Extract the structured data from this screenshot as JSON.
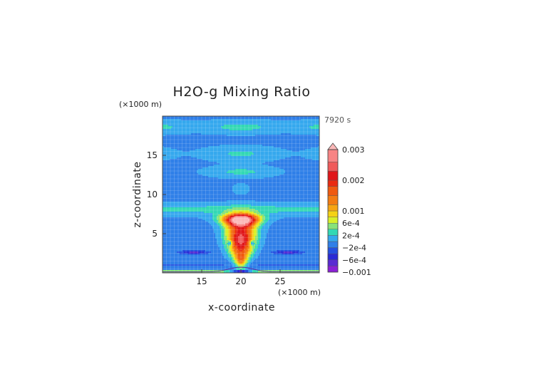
{
  "chart_data": {
    "type": "heatmap",
    "title": "H2O-g Mixing Ratio",
    "xlabel": "x-coordinate",
    "ylabel": "z-coordinate",
    "x_unit": "(×1000 m)",
    "z_unit": "(×1000 m)",
    "time_label": "7920 s",
    "xlim": [
      10,
      30
    ],
    "ylim": [
      0,
      20
    ],
    "x_ticks": [
      "15",
      "20",
      "25"
    ],
    "x_tick_values": [
      15,
      20,
      25
    ],
    "y_ticks": [
      "5",
      "10",
      "15"
    ],
    "y_tick_values": [
      5,
      10,
      15
    ],
    "colorbar": {
      "labels": [
        "0.003",
        "0.002",
        "0.001",
        "6e-4",
        "2e-4",
        "−2e-4",
        "−6e-4",
        "−0.001"
      ],
      "label_values": [
        0.003,
        0.002,
        0.001,
        0.0006,
        0.0002,
        -0.0002,
        -0.0006,
        -0.001
      ],
      "levels": [
        {
          "value": -0.001,
          "color": "#8b1fd6"
        },
        {
          "value": -0.0008,
          "color": "#5a2ad2"
        },
        {
          "value": -0.0006,
          "color": "#2a2ad6"
        },
        {
          "value": -0.0004,
          "color": "#2450e0"
        },
        {
          "value": -0.0002,
          "color": "#2f7fe8"
        },
        {
          "value": 0,
          "color": "#35a8ee"
        },
        {
          "value": 0.0002,
          "color": "#33d8b4"
        },
        {
          "value": 0.0004,
          "color": "#88e27a"
        },
        {
          "value": 0.0006,
          "color": "#d8ef2a"
        },
        {
          "value": 0.0008,
          "color": "#f5d214"
        },
        {
          "value": 0.001,
          "color": "#f7a512"
        },
        {
          "value": 0.0012,
          "color": "#f37c12"
        },
        {
          "value": 0.0015,
          "color": "#ef5a10"
        },
        {
          "value": 0.0018,
          "color": "#ea2a10"
        },
        {
          "value": 0.002,
          "color": "#e0161a"
        },
        {
          "value": 0.0023,
          "color": "#f05a5a"
        },
        {
          "value": 0.0026,
          "color": "#f78484"
        },
        {
          "value": 0.003,
          "color": "#fbb8b8"
        }
      ]
    }
  }
}
